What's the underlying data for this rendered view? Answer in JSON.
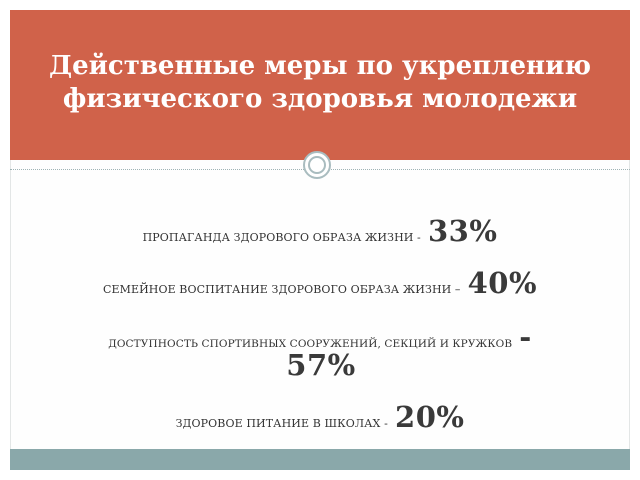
{
  "slide": {
    "title_lines": [
      "Действенные меры по укреплению",
      "физического здоровья молодежи"
    ],
    "items": [
      {
        "text": "ПРОПАГАНДА ЗДОРОВОГО ОБРАЗА ЖИЗНИ -",
        "value": "33%"
      },
      {
        "text": "СЕМЕЙНОЕ ВОСПИТАНИЕ ЗДОРОВОГО ОБРАЗА ЖИЗНИ –",
        "value": "40%"
      },
      {
        "text": "ДОСТУПНОСТЬ СПОРТИВНЫХ СООРУЖЕНИЙ, СЕКЦИЙ И КРУЖКОВ",
        "dash": "-",
        "value": "57%"
      },
      {
        "text": "ЗДОРОВОЕ ПИТАНИЕ В ШКОЛАХ -",
        "value": "20%"
      }
    ],
    "colors": {
      "title_band": "#d0624a",
      "bottom_band": "#8aa8aa",
      "text": "#333333"
    }
  }
}
